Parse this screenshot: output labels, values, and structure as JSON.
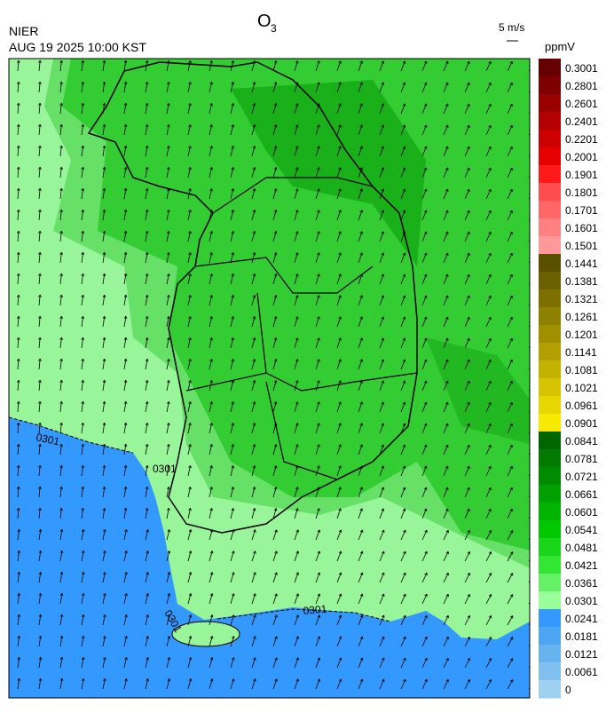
{
  "header": {
    "title": "O",
    "title_sub": "3",
    "agency": "NIER",
    "datetime": "AUG 19 2025 10:00 KST",
    "vector_scale": "5 m/s",
    "unit": "ppmV"
  },
  "colorbar": {
    "labels": [
      "0.3001",
      "0.2801",
      "0.2601",
      "0.2401",
      "0.2201",
      "0.2001",
      "0.1901",
      "0.1801",
      "0.1701",
      "0.1601",
      "0.1501",
      "0.1441",
      "0.1381",
      "0.1321",
      "0.1261",
      "0.1201",
      "0.1141",
      "0.1081",
      "0.1021",
      "0.0961",
      "0.0901",
      "0.0841",
      "0.0781",
      "0.0721",
      "0.0661",
      "0.0601",
      "0.0541",
      "0.0481",
      "0.0421",
      "0.0361",
      "0.0301",
      "0.0241",
      "0.0181",
      "0.0121",
      "0.0061",
      "0"
    ],
    "colors": [
      "#660000",
      "#7f0000",
      "#990000",
      "#b30000",
      "#cc0000",
      "#e60000",
      "#ff1a1a",
      "#ff4d4d",
      "#ff6666",
      "#ff8080",
      "#ff9999",
      "#5a5000",
      "#6b6000",
      "#7d7000",
      "#8f8000",
      "#a09000",
      "#b2a000",
      "#c4b200",
      "#d6c400",
      "#e8d600",
      "#f5ea00",
      "#006600",
      "#007a00",
      "#008c00",
      "#00a000",
      "#00b400",
      "#00c800",
      "#1ad61a",
      "#33e633",
      "#66f066",
      "#99ff99",
      "#3399ff",
      "#4da6f2",
      "#66b3f0",
      "#80bfee",
      "#a0d0f0"
    ]
  },
  "map": {
    "contour_labels": [
      "0301",
      "0301",
      "0301",
      "0301"
    ]
  }
}
